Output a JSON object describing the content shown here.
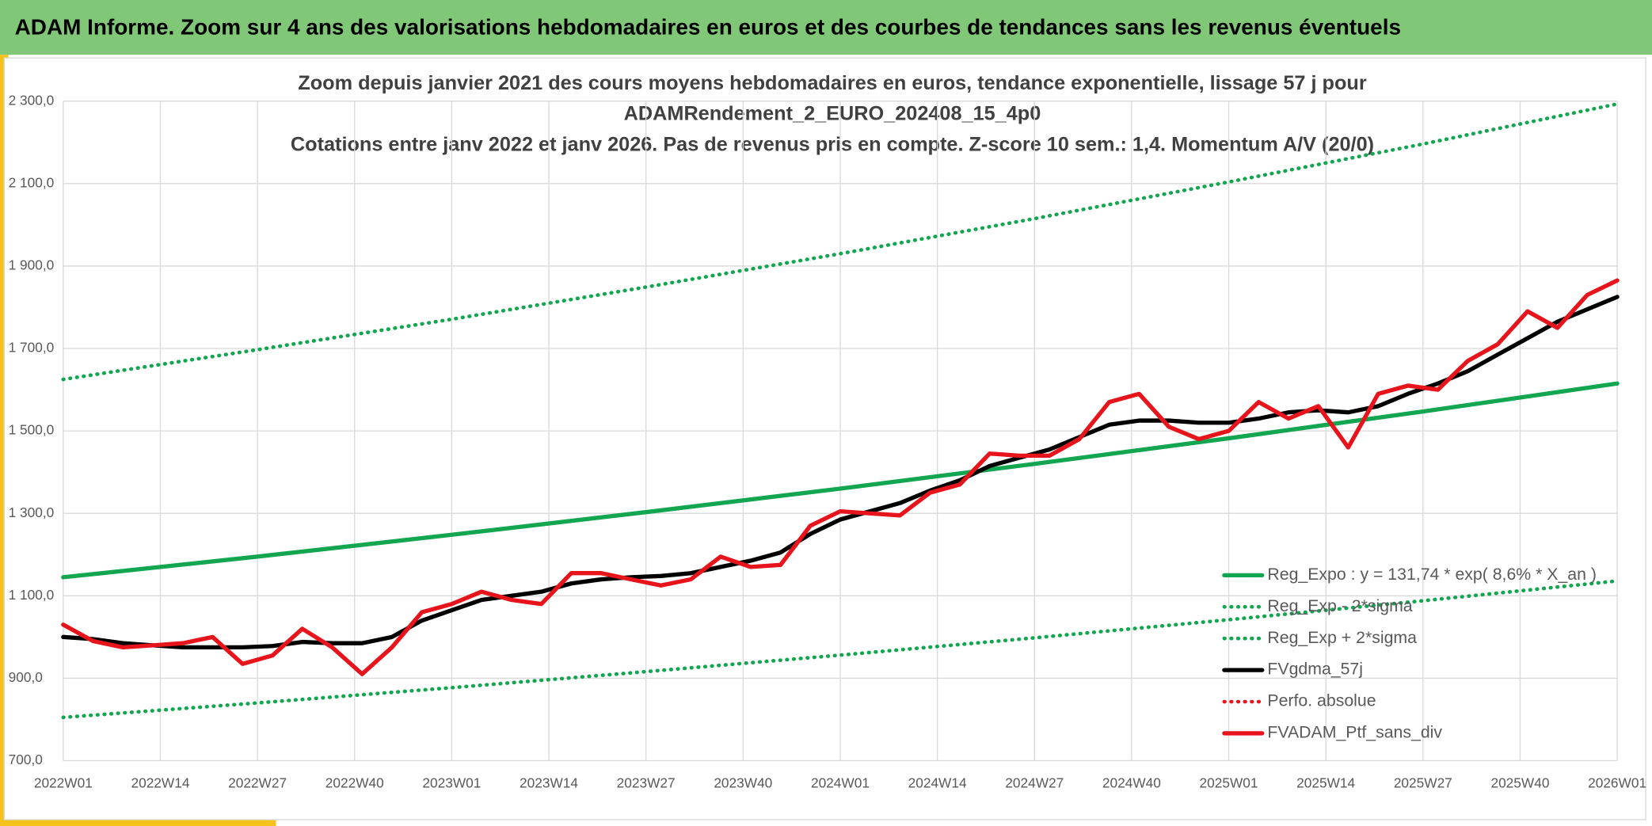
{
  "header": {
    "title": "ADAM Informe. Zoom sur 4 ans des valorisations hebdomadaires en euros et des courbes de tendances sans les revenus éventuels"
  },
  "chart_data": {
    "type": "line",
    "title": [
      "Zoom depuis janvier 2021 des cours moyens hebdomadaires en euros, tendance exponentielle, lissage 57 j pour",
      "ADAMRendement_2_EURO_202408_15_4p0"
    ],
    "subtitle": "Cotations entre janv 2022 et janv 2026. Pas de revenus pris en compte. Z-score 10 sem.: 1,4. Momentum A/V (20/0)",
    "xlim": [
      0,
      208
    ],
    "xticks": [
      {
        "value": 0,
        "label": "2022W01"
      },
      {
        "value": 13,
        "label": "2022W14"
      },
      {
        "value": 26,
        "label": "2022W27"
      },
      {
        "value": 39,
        "label": "2022W40"
      },
      {
        "value": 52,
        "label": "2023W01"
      },
      {
        "value": 65,
        "label": "2023W14"
      },
      {
        "value": 78,
        "label": "2023W27"
      },
      {
        "value": 91,
        "label": "2023W40"
      },
      {
        "value": 104,
        "label": "2024W01"
      },
      {
        "value": 117,
        "label": "2024W14"
      },
      {
        "value": 130,
        "label": "2024W27"
      },
      {
        "value": 143,
        "label": "2024W40"
      },
      {
        "value": 156,
        "label": "2025W01"
      },
      {
        "value": 169,
        "label": "2025W14"
      },
      {
        "value": 182,
        "label": "2025W27"
      },
      {
        "value": 195,
        "label": "2025W40"
      },
      {
        "value": 208,
        "label": "2026W01"
      }
    ],
    "ylim": [
      700,
      2300
    ],
    "yticks": [
      {
        "value": 700,
        "label": "700,0"
      },
      {
        "value": 900,
        "label": "900,0"
      },
      {
        "value": 1100,
        "label": "1 100,0"
      },
      {
        "value": 1300,
        "label": "1 300,0"
      },
      {
        "value": 1500,
        "label": "1 500,0"
      },
      {
        "value": 1700,
        "label": "1 700,0"
      },
      {
        "value": 1900,
        "label": "1 900,0"
      },
      {
        "value": 2100,
        "label": "2 100,0"
      },
      {
        "value": 2300,
        "label": "2 300,0"
      }
    ],
    "grid": true,
    "legend": "bottom-right",
    "series": [
      {
        "name": "Reg_Expo : y = 131,74 * exp( 8,6% *  X_an )",
        "color": "#12a650",
        "style": "solid",
        "x": [
          0,
          26,
          52,
          78,
          104,
          130,
          156,
          182,
          208
        ],
        "values": [
          1145,
          1195,
          1248,
          1303,
          1360,
          1420,
          1482,
          1547,
          1615
        ]
      },
      {
        "name": "Reg_Exp - 2*sigma",
        "color": "#12a650",
        "style": "dotted",
        "x": [
          0,
          26,
          52,
          78,
          104,
          130,
          156,
          182,
          208
        ],
        "values": [
          805,
          840,
          877,
          916,
          956,
          998,
          1042,
          1088,
          1136
        ]
      },
      {
        "name": "Reg_Exp + 2*sigma",
        "color": "#12a650",
        "style": "dotted",
        "x": [
          0,
          26,
          52,
          78,
          104,
          130,
          156,
          182,
          208
        ],
        "values": [
          1625,
          1697,
          1771,
          1849,
          1930,
          2015,
          2104,
          2196,
          2293
        ]
      },
      {
        "name": "FVgdma_57j",
        "color": "#000000",
        "style": "solid",
        "x": [
          0,
          4,
          8,
          12,
          16,
          20,
          24,
          28,
          32,
          36,
          40,
          44,
          48,
          52,
          56,
          60,
          64,
          68,
          72,
          76,
          80,
          84,
          88,
          92,
          96,
          100,
          104,
          108,
          112,
          116,
          120,
          124,
          128,
          132,
          136,
          140,
          144,
          148,
          152,
          156,
          160,
          164,
          168,
          172,
          176,
          180,
          184,
          188,
          192,
          196,
          200,
          204,
          208
        ],
        "values": [
          1000,
          995,
          985,
          980,
          975,
          975,
          975,
          978,
          988,
          985,
          985,
          1000,
          1040,
          1065,
          1090,
          1100,
          1110,
          1130,
          1140,
          1145,
          1148,
          1155,
          1170,
          1185,
          1205,
          1250,
          1285,
          1305,
          1325,
          1355,
          1380,
          1415,
          1435,
          1455,
          1485,
          1515,
          1525,
          1525,
          1520,
          1520,
          1530,
          1545,
          1550,
          1545,
          1560,
          1590,
          1615,
          1645,
          1685,
          1725,
          1765,
          1795,
          1825
        ]
      },
      {
        "name": "Perfo. absolue",
        "color": "#e8141c",
        "style": "dotted",
        "x": [],
        "values": []
      },
      {
        "name": "FVADAM_Ptf_sans_div",
        "color": "#e8141c",
        "style": "solid",
        "x": [
          0,
          4,
          8,
          12,
          16,
          20,
          24,
          28,
          32,
          36,
          40,
          44,
          48,
          52,
          56,
          60,
          64,
          68,
          72,
          76,
          80,
          84,
          88,
          92,
          96,
          100,
          104,
          108,
          112,
          116,
          120,
          124,
          128,
          132,
          136,
          140,
          144,
          148,
          152,
          156,
          160,
          164,
          168,
          172,
          176,
          180,
          184,
          188,
          192,
          196,
          200,
          204,
          208
        ],
        "values": [
          1030,
          990,
          975,
          980,
          985,
          1000,
          935,
          955,
          1020,
          975,
          910,
          975,
          1060,
          1080,
          1110,
          1090,
          1080,
          1155,
          1155,
          1140,
          1125,
          1140,
          1195,
          1170,
          1175,
          1270,
          1305,
          1300,
          1295,
          1350,
          1370,
          1445,
          1440,
          1440,
          1480,
          1570,
          1590,
          1510,
          1480,
          1500,
          1570,
          1530,
          1560,
          1460,
          1590,
          1610,
          1600,
          1670,
          1710,
          1790,
          1750,
          1830,
          1865
        ]
      }
    ]
  }
}
